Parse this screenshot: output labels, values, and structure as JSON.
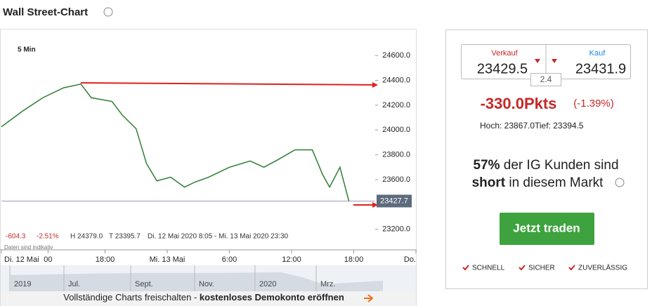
{
  "header": {
    "title": "Wall Street-Chart"
  },
  "chart_data": {
    "type": "line",
    "interval": "5 Min",
    "color": "#2e7d32",
    "x": [
      8,
      10,
      12,
      14,
      15.67,
      16.67,
      18.67,
      19.67,
      21,
      22,
      23,
      24.33,
      25.67,
      26.67,
      28,
      30,
      32,
      33.33,
      34.67,
      36.33,
      38,
      39,
      39.67,
      40.67,
      41.53
    ],
    "values": [
      24026,
      24150,
      24260,
      24340,
      24370,
      24260,
      24230,
      24120,
      24010,
      23730,
      23590,
      23620,
      23540,
      23580,
      23620,
      23700,
      23750,
      23700,
      23760,
      23840,
      23840,
      23640,
      23540,
      23700,
      23428
    ],
    "last": 23427.7,
    "xlim": [
      8,
      48
    ],
    "ylim": [
      23040,
      24810
    ],
    "yticks": [
      {
        "value": 23200,
        "label": "23200.0"
      },
      {
        "value": 23600,
        "label": "23600.0"
      },
      {
        "value": 23800,
        "label": "23800.0"
      },
      {
        "value": 24000,
        "label": "24000.0"
      },
      {
        "value": 24200,
        "label": "24200.0"
      },
      {
        "value": 24400,
        "label": "24400.0"
      },
      {
        "value": 24600,
        "label": "24600.0"
      }
    ],
    "xticks": [
      {
        "value": 8,
        "label": "Di. 12 Mai"
      },
      {
        "value": 12.5,
        "label": "00"
      },
      {
        "value": 18,
        "label": "18:00"
      },
      {
        "value": 24,
        "label": "Mi. 13 Mai"
      },
      {
        "value": 30,
        "label": "6:00"
      },
      {
        "value": 36,
        "label": "12:00"
      },
      {
        "value": 42,
        "label": "18:00"
      },
      {
        "value": 48,
        "label": "Do."
      }
    ],
    "stats": [
      "-604.3",
      "-2.51%",
      "H 24379.0",
      "T 23395.7",
      "Di. 12 Mai 2020 8:05 - Mi. 13 Mai 2020 23:30"
    ],
    "note": "Daten sind indikativ"
  },
  "navigator": {
    "labels": [
      "2019",
      "Jul.",
      "Sept.",
      "Nov.",
      "2020",
      "Mrz."
    ]
  },
  "banner": {
    "text": "Vollständige Charts freischalten - ",
    "link": "kostenloses Demokonto eröffnen"
  },
  "panel": {
    "sell_label": "Verkauf",
    "sell": "23429.5",
    "buy_label": "Kauf",
    "buy": "23431.9",
    "spread": "2.4",
    "change": "-330.0Pkts",
    "change_pct": "(-1.39%)",
    "high": "Hoch: 23867.0",
    "low": "Tief: 23394.5",
    "sentiment": [
      "57%",
      " der IG Kunden sind",
      "short",
      " in diesem Markt"
    ],
    "button": "Jetzt traden",
    "features": [
      "SCHNELL",
      "SICHER",
      "ZUVERLÄSSIG"
    ]
  }
}
